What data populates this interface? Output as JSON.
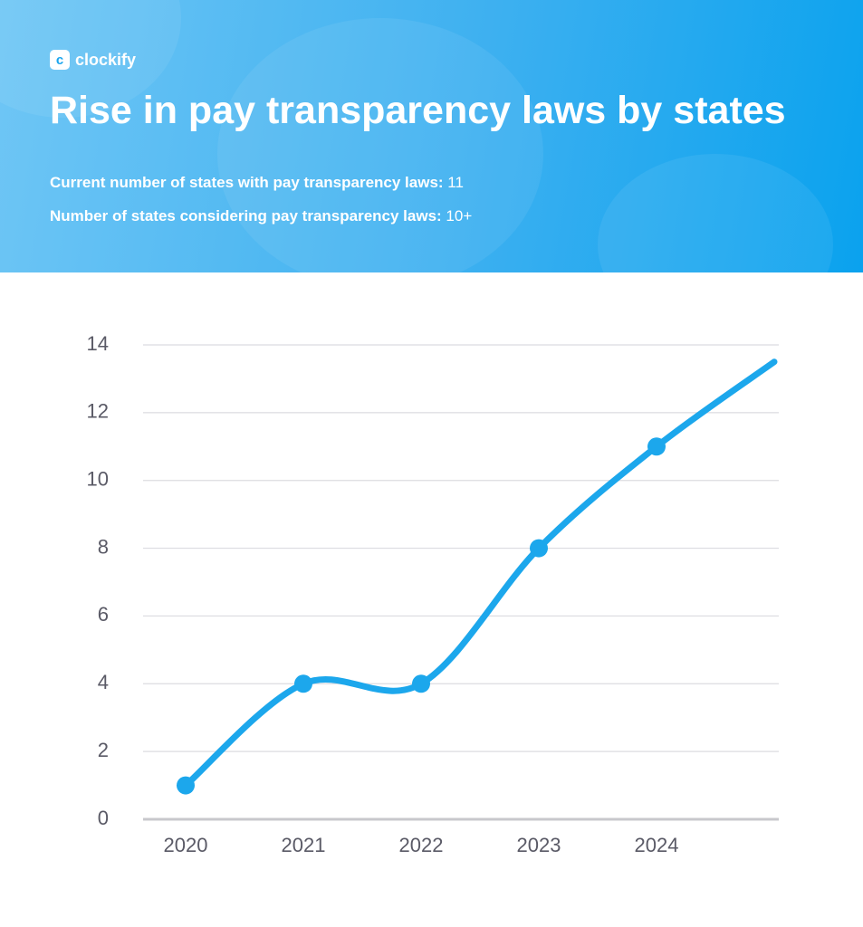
{
  "header": {
    "logo": "clockify",
    "title": "Rise in pay transparency laws by states",
    "stats": [
      {
        "label": "Current number of states with pay transparency laws:",
        "value": "11"
      },
      {
        "label": "Number of states considering pay transparency laws:",
        "value": "10+"
      }
    ]
  },
  "chart_data": {
    "type": "line",
    "categories": [
      "2020",
      "2021",
      "2022",
      "2023",
      "2024",
      null
    ],
    "series": [
      {
        "color": "#1ca7ec",
        "values": [
          1,
          4,
          4,
          8,
          11,
          13.5
        ]
      }
    ],
    "ylim": [
      0,
      14
    ],
    "yticks": [
      0,
      2,
      4,
      6,
      8,
      10,
      12,
      14
    ],
    "grid": true
  }
}
